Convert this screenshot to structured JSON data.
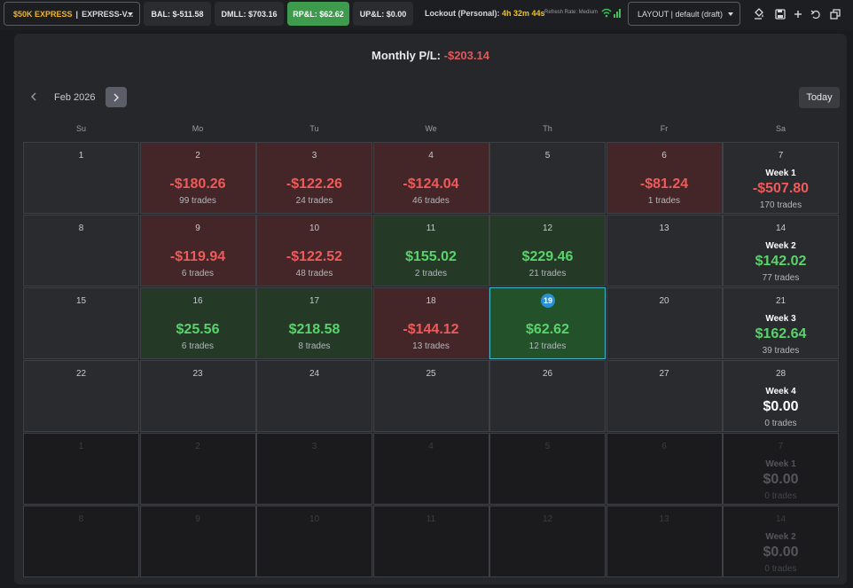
{
  "topbar": {
    "account_name": "$50K EXPRESS",
    "account_sep": "|",
    "account_id": "EXPRESS-V...",
    "bal": "BAL: $-511.58",
    "dmll": "DMLL: $703.16",
    "rpl": "RP&L: $62.62",
    "upl": "UP&L: $0.00",
    "lockout_label": "Lockout (Personal):",
    "lockout_time": "4h 32m 44s",
    "refresh_rate": "Refresh Rate: Medium",
    "layout_label": "LAYOUT | default (draft)",
    "colors": {
      "accent_gold": "#f0b429",
      "rpl_green": "#3e9a4d"
    }
  },
  "calendar": {
    "monthly_label": "Monthly P/L:",
    "monthly_value": "-$203.14",
    "month_label": "Feb 2026",
    "today_button": "Today",
    "weekdays": [
      "Su",
      "Mo",
      "Tu",
      "We",
      "Th",
      "Fr",
      "Sa"
    ],
    "weeks": [
      {
        "days": [
          {
            "day": "1",
            "type": "empty"
          },
          {
            "day": "2",
            "type": "neg",
            "amount": "-$180.26",
            "trades": "99 trades"
          },
          {
            "day": "3",
            "type": "neg",
            "amount": "-$122.26",
            "trades": "24 trades"
          },
          {
            "day": "4",
            "type": "neg",
            "amount": "-$124.04",
            "trades": "46 trades"
          },
          {
            "day": "5",
            "type": "empty"
          },
          {
            "day": "6",
            "type": "neg",
            "amount": "-$81.24",
            "trades": "1 trades"
          }
        ],
        "summary": {
          "day": "7",
          "week": "Week 1",
          "amount": "-$507.80",
          "trades": "170 trades",
          "type": "neg"
        }
      },
      {
        "days": [
          {
            "day": "8",
            "type": "empty"
          },
          {
            "day": "9",
            "type": "neg",
            "amount": "-$119.94",
            "trades": "6 trades"
          },
          {
            "day": "10",
            "type": "neg",
            "amount": "-$122.52",
            "trades": "48 trades"
          },
          {
            "day": "11",
            "type": "pos",
            "amount": "$155.02",
            "trades": "2 trades"
          },
          {
            "day": "12",
            "type": "pos",
            "amount": "$229.46",
            "trades": "21 trades"
          },
          {
            "day": "13",
            "type": "empty"
          }
        ],
        "summary": {
          "day": "14",
          "week": "Week 2",
          "amount": "$142.02",
          "trades": "77 trades",
          "type": "pos"
        }
      },
      {
        "days": [
          {
            "day": "15",
            "type": "empty"
          },
          {
            "day": "16",
            "type": "pos",
            "amount": "$25.56",
            "trades": "6 trades"
          },
          {
            "day": "17",
            "type": "pos",
            "amount": "$218.58",
            "trades": "8 trades"
          },
          {
            "day": "18",
            "type": "neg",
            "amount": "-$144.12",
            "trades": "13 trades"
          },
          {
            "day": "19",
            "type": "today",
            "amount": "$62.62",
            "trades": "12 trades"
          },
          {
            "day": "20",
            "type": "empty"
          }
        ],
        "summary": {
          "day": "21",
          "week": "Week 3",
          "amount": "$162.64",
          "trades": "39 trades",
          "type": "pos"
        }
      },
      {
        "days": [
          {
            "day": "22",
            "type": "empty"
          },
          {
            "day": "23",
            "type": "empty"
          },
          {
            "day": "24",
            "type": "empty"
          },
          {
            "day": "25",
            "type": "empty"
          },
          {
            "day": "26",
            "type": "empty"
          },
          {
            "day": "27",
            "type": "empty"
          }
        ],
        "summary": {
          "day": "28",
          "week": "Week 4",
          "amount": "$0.00",
          "trades": "0 trades",
          "type": "zero"
        }
      },
      {
        "days": [
          {
            "day": "1",
            "type": "dim"
          },
          {
            "day": "2",
            "type": "dim"
          },
          {
            "day": "3",
            "type": "dim"
          },
          {
            "day": "4",
            "type": "dim"
          },
          {
            "day": "5",
            "type": "dim"
          },
          {
            "day": "6",
            "type": "dim"
          }
        ],
        "summary": {
          "day": "7",
          "week": "Week 1",
          "amount": "$0.00",
          "trades": "0 trades",
          "type": "dim"
        }
      },
      {
        "days": [
          {
            "day": "8",
            "type": "dim"
          },
          {
            "day": "9",
            "type": "dim"
          },
          {
            "day": "10",
            "type": "dim"
          },
          {
            "day": "11",
            "type": "dim"
          },
          {
            "day": "12",
            "type": "dim"
          },
          {
            "day": "13",
            "type": "dim"
          }
        ],
        "summary": {
          "day": "14",
          "week": "Week 2",
          "amount": "$0.00",
          "trades": "0 trades",
          "type": "dim"
        }
      }
    ]
  }
}
